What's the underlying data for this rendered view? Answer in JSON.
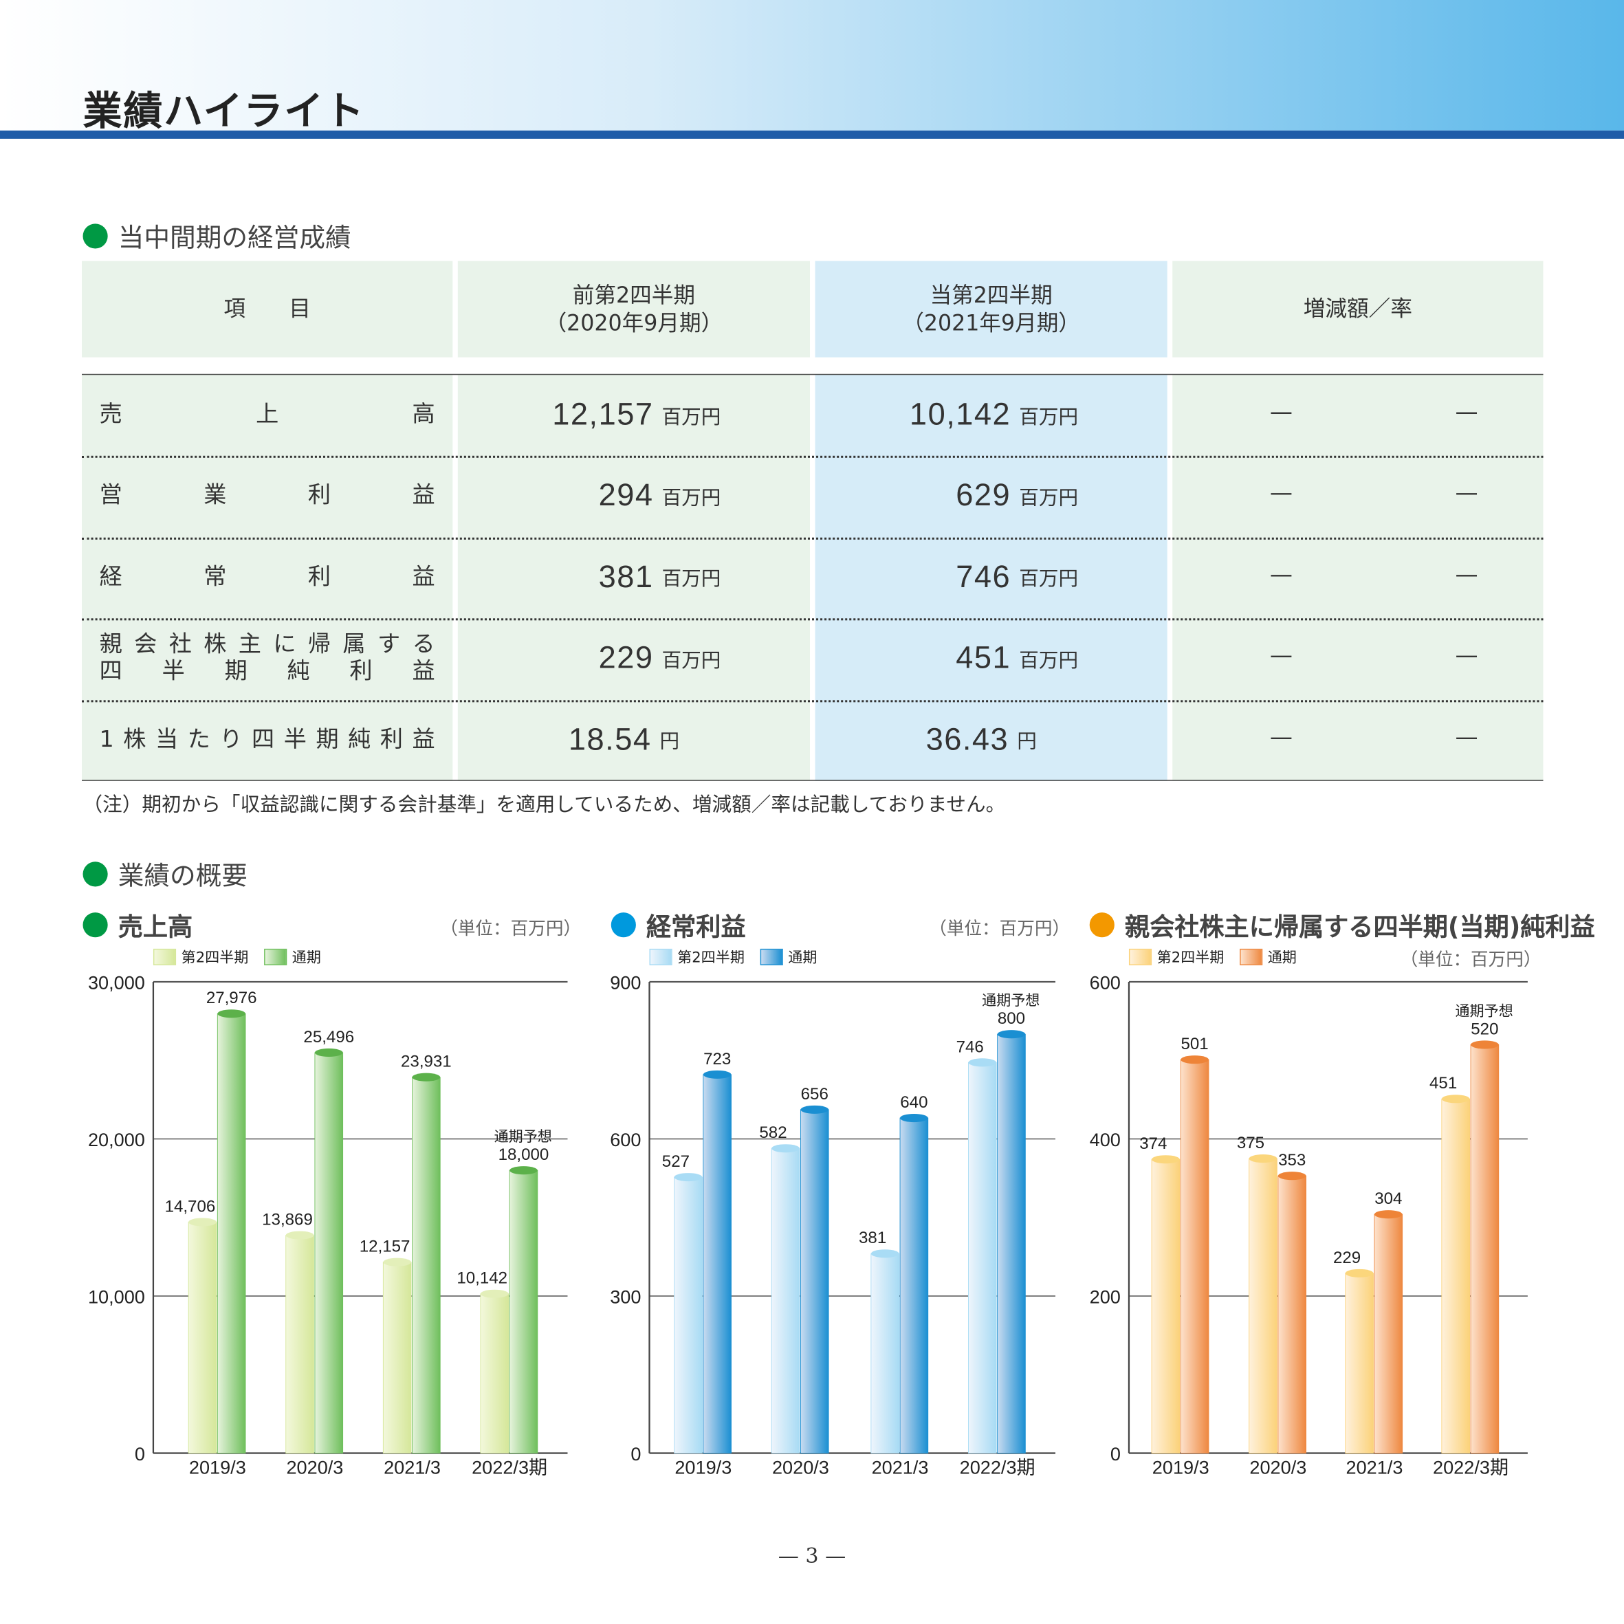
{
  "page_title": "業績ハイライト",
  "section1": "当中間期の経営成績",
  "table": {
    "headers": [
      {
        "l1": "項　　目",
        "l2": ""
      },
      {
        "l1": "前第2四半期",
        "l2": "（2020年9月期）"
      },
      {
        "l1": "当第2四半期",
        "l2": "（2021年9月期）"
      },
      {
        "l1": "増減額／率",
        "l2": ""
      }
    ],
    "rows": [
      {
        "label": "売上高",
        "label2": "",
        "prev": "12,157",
        "prev_unit": "百万円",
        "curr": "10,142",
        "curr_unit": "百万円",
        "diff": "—",
        "rate": "—"
      },
      {
        "label": "営業利益",
        "label2": "",
        "prev": "294",
        "prev_unit": "百万円",
        "curr": "629",
        "curr_unit": "百万円",
        "diff": "—",
        "rate": "—"
      },
      {
        "label": "経常利益",
        "label2": "",
        "prev": "381",
        "prev_unit": "百万円",
        "curr": "746",
        "curr_unit": "百万円",
        "diff": "—",
        "rate": "—"
      },
      {
        "label": "親会社株主に帰属する",
        "label2": "四半期純利益",
        "prev": "229",
        "prev_unit": "百万円",
        "curr": "451",
        "curr_unit": "百万円",
        "diff": "—",
        "rate": "—"
      },
      {
        "label": "1株当たり四半期純利益",
        "label2": "",
        "prev": "18.54",
        "prev_unit": "円",
        "curr": "36.43",
        "curr_unit": "円",
        "diff": "—",
        "rate": "—"
      }
    ],
    "note": "（注）期初から「収益認識に関する会計基準」を適用しているため、増減額／率は記載しておりません。"
  },
  "section2": "業績の概要",
  "page_number": "— 3 —",
  "colors": {
    "green": "#009944",
    "blue": "#0099dd",
    "orange": "#f39800",
    "header_bg": "#e9f3ea",
    "current_bg": "#d6ecf8"
  },
  "chart_data": [
    {
      "type": "bar",
      "title": "売上高",
      "unit": "（単位：百万円）",
      "legend": [
        "第2四半期",
        "通期"
      ],
      "categories": [
        "2019/3",
        "2020/3",
        "2021/3",
        "2022/3期"
      ],
      "ylim": [
        0,
        30000
      ],
      "yticks": [
        "0",
        "10,000",
        "20,000",
        "30,000"
      ],
      "series": [
        {
          "name": "第2四半期",
          "values": [
            14706,
            13869,
            12157,
            10142
          ],
          "labels": [
            "14,706",
            "13,869",
            "12,157",
            "10,142"
          ]
        },
        {
          "name": "通期",
          "values": [
            27976,
            25496,
            23931,
            18000
          ],
          "labels": [
            "27,976",
            "25,496",
            "23,931",
            "18,000"
          ]
        }
      ],
      "annotation": "通期予想"
    },
    {
      "type": "bar",
      "title": "経常利益",
      "unit": "（単位：百万円）",
      "legend": [
        "第2四半期",
        "通期"
      ],
      "categories": [
        "2019/3",
        "2020/3",
        "2021/3",
        "2022/3期"
      ],
      "ylim": [
        0,
        900
      ],
      "yticks": [
        "0",
        "300",
        "600",
        "900"
      ],
      "series": [
        {
          "name": "第2四半期",
          "values": [
            527,
            582,
            381,
            746
          ],
          "labels": [
            "527",
            "582",
            "381",
            "746"
          ]
        },
        {
          "name": "通期",
          "values": [
            723,
            656,
            640,
            800
          ],
          "labels": [
            "723",
            "656",
            "640",
            "800"
          ]
        }
      ],
      "annotation": "通期予想"
    },
    {
      "type": "bar",
      "title": "親会社株主に帰属する四半期(当期)純利益",
      "unit": "（単位：百万円）",
      "legend": [
        "第2四半期",
        "通期"
      ],
      "categories": [
        "2019/3",
        "2020/3",
        "2021/3",
        "2022/3期"
      ],
      "ylim": [
        0,
        600
      ],
      "yticks": [
        "0",
        "200",
        "400",
        "600"
      ],
      "series": [
        {
          "name": "第2四半期",
          "values": [
            374,
            375,
            229,
            451
          ],
          "labels": [
            "374",
            "375",
            "229",
            "451"
          ]
        },
        {
          "name": "通期",
          "values": [
            501,
            353,
            304,
            520
          ],
          "labels": [
            "501",
            "353",
            "304",
            "520"
          ]
        }
      ],
      "annotation": "通期予想"
    }
  ]
}
